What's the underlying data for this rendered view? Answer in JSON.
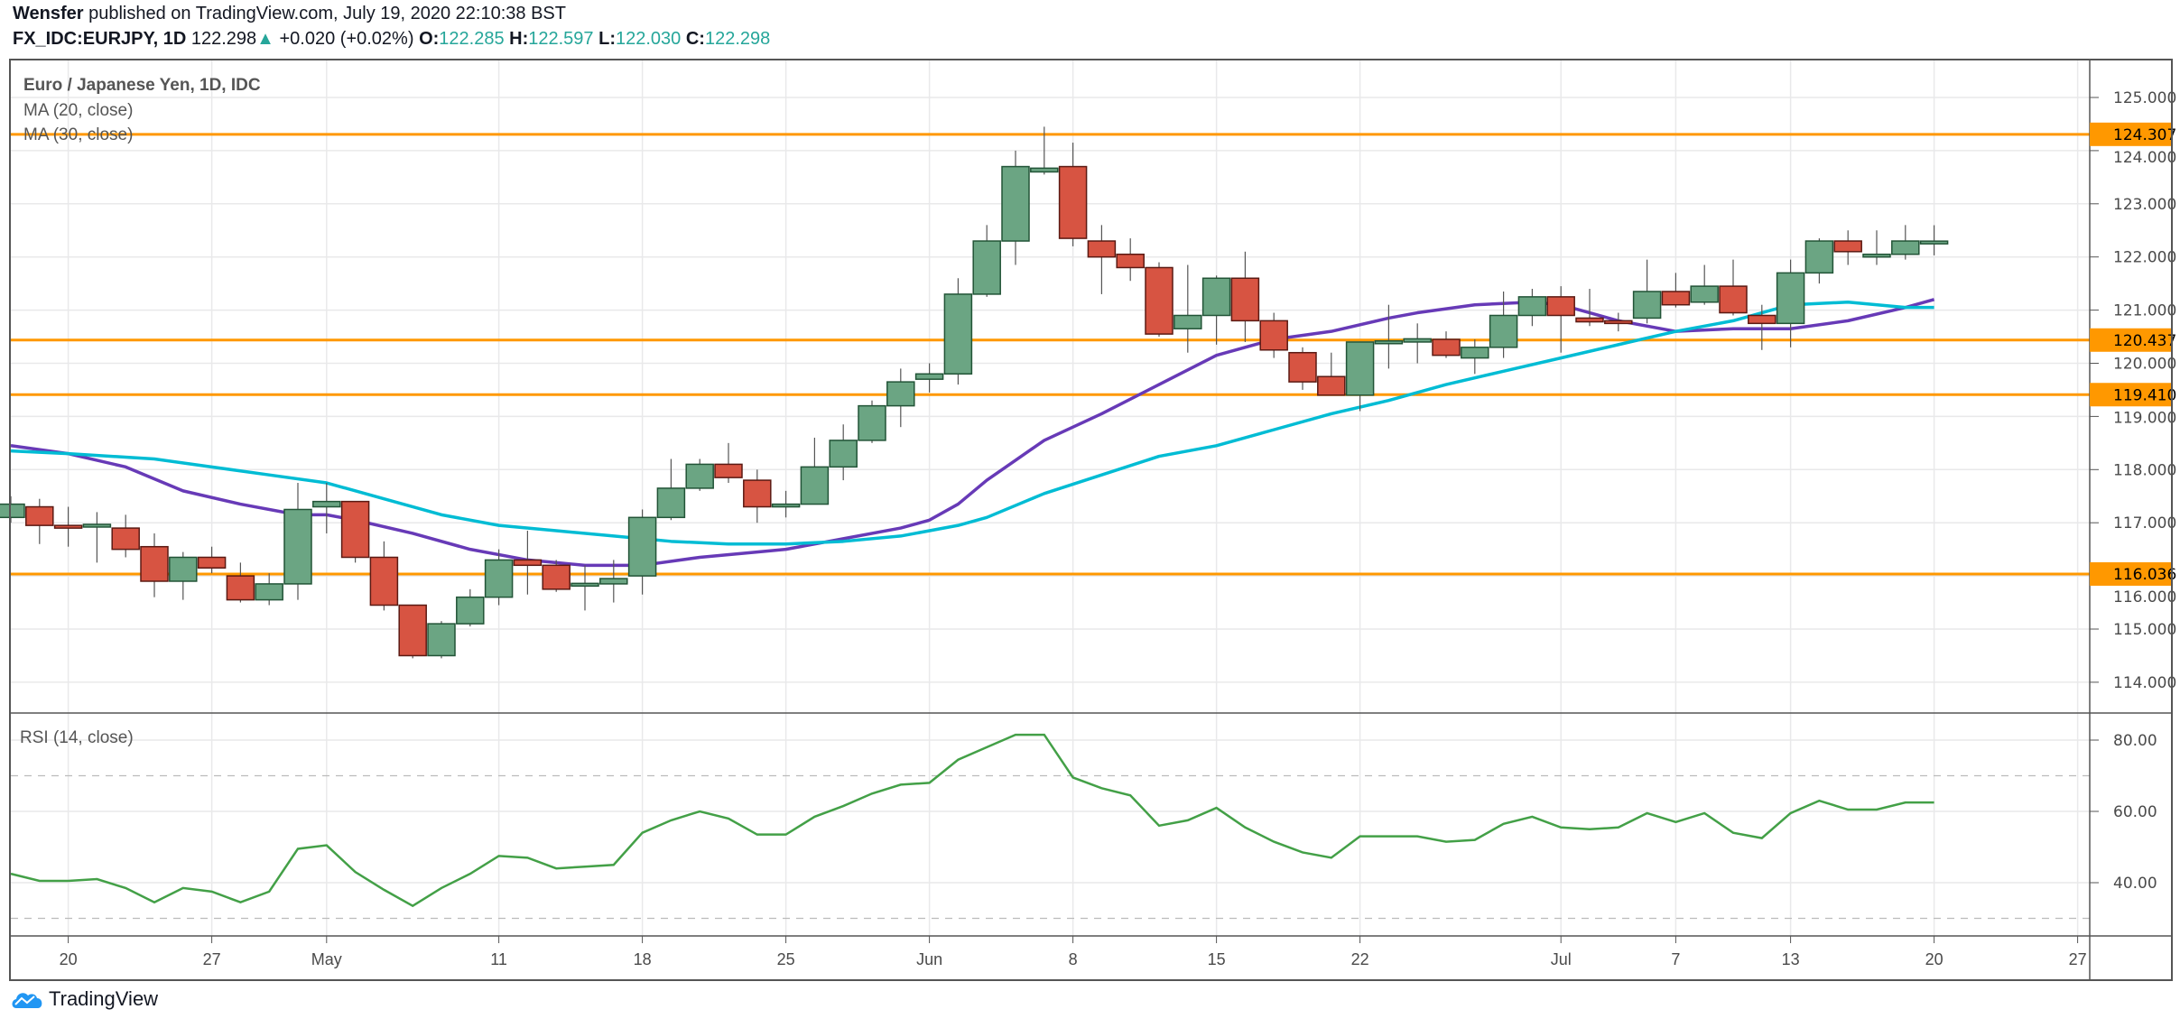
{
  "header": {
    "author": "Wensfer",
    "published": " published on TradingView.com, July 19, 2020 22:10:38 BST",
    "symbol": "FX_IDC:EURJPY, 1D",
    "last": "122.298",
    "change": "+0.020 (+0.02%)",
    "o_label": "O:",
    "o": "122.285",
    "h_label": "H:",
    "h": "122.597",
    "l_label": "L:",
    "l": "122.030",
    "c_label": "C:",
    "c": "122.298",
    "direction_icon": "triangle-up-icon"
  },
  "legend": {
    "title": "Euro / Japanese Yen, 1D, IDC",
    "ma20": "MA (20, close)",
    "ma30": "MA (30, close)",
    "rsi": "RSI (14, close)"
  },
  "footer": {
    "brand": "TradingView",
    "logo_icon": "tradingview-cloud-logo-icon"
  },
  "colors": {
    "up_fill": "#6ba583",
    "up_border": "#225437",
    "down_fill": "#d75442",
    "down_border": "#5b1a13",
    "ma20": "#673ab7",
    "ma30": "#00bcd4",
    "rsi": "#43a047",
    "level": "#ff9800",
    "change_up": "#26a69a"
  },
  "chart_data": [
    {
      "type": "candlestick",
      "ylim": [
        113.5,
        125.5
      ],
      "yticks": [
        "114.000",
        "115.000",
        "116.000",
        "117.000",
        "118.000",
        "119.000",
        "120.000",
        "121.000",
        "122.000",
        "123.000",
        "124.000",
        "125.000"
      ],
      "xticks": [
        {
          "date": "2020-04-20",
          "label": "20"
        },
        {
          "date": "2020-04-27",
          "label": "27"
        },
        {
          "date": "2020-05-01",
          "label": "May"
        },
        {
          "date": "2020-05-11",
          "label": "11"
        },
        {
          "date": "2020-05-18",
          "label": "18"
        },
        {
          "date": "2020-05-25",
          "label": "25"
        },
        {
          "date": "2020-06-01",
          "label": "Jun"
        },
        {
          "date": "2020-06-08",
          "label": "8"
        },
        {
          "date": "2020-06-15",
          "label": "15"
        },
        {
          "date": "2020-06-22",
          "label": "22"
        },
        {
          "date": "2020-07-01",
          "label": "Jul"
        },
        {
          "date": "2020-07-07",
          "label": "7"
        },
        {
          "date": "2020-07-13",
          "label": "13"
        },
        {
          "date": "2020-07-20",
          "label": "20"
        },
        {
          "date": "2020-07-27",
          "label": "27"
        }
      ],
      "grid": true,
      "horizontal_levels": [
        {
          "value": 124.307,
          "label": "124.307"
        },
        {
          "value": 120.437,
          "label": "120.437"
        },
        {
          "value": 119.41,
          "label": "119.410"
        },
        {
          "value": 116.036,
          "label": "116.036"
        }
      ],
      "ohlc_columns": [
        "date",
        "open",
        "high",
        "low",
        "close"
      ],
      "candles": [
        [
          "2020-04-16",
          117.1,
          117.5,
          117.0,
          117.35
        ],
        [
          "2020-04-17",
          117.3,
          117.45,
          116.6,
          116.95
        ],
        [
          "2020-04-20",
          116.95,
          117.3,
          116.55,
          116.93
        ],
        [
          "2020-04-21",
          116.93,
          117.2,
          116.25,
          116.97
        ],
        [
          "2020-04-22",
          116.9,
          117.15,
          116.35,
          116.5
        ],
        [
          "2020-04-23",
          116.55,
          116.8,
          115.6,
          115.9
        ],
        [
          "2020-04-24",
          115.9,
          116.45,
          115.55,
          116.35
        ],
        [
          "2020-04-27",
          116.35,
          116.55,
          116.05,
          116.15
        ],
        [
          "2020-04-28",
          116.0,
          116.25,
          115.5,
          115.55
        ],
        [
          "2020-04-29",
          115.55,
          116.05,
          115.45,
          115.85
        ],
        [
          "2020-04-30",
          115.85,
          117.75,
          115.55,
          117.25
        ],
        [
          "2020-05-01",
          117.3,
          117.75,
          116.8,
          117.4
        ],
        [
          "2020-05-04",
          117.4,
          117.4,
          116.25,
          116.35
        ],
        [
          "2020-05-05",
          116.35,
          116.65,
          115.35,
          115.45
        ],
        [
          "2020-05-06",
          115.45,
          115.45,
          114.45,
          114.5
        ],
        [
          "2020-05-07",
          114.5,
          115.15,
          114.45,
          115.1
        ],
        [
          "2020-05-08",
          115.1,
          115.75,
          115.05,
          115.6
        ],
        [
          "2020-05-11",
          115.6,
          116.5,
          115.45,
          116.3
        ],
        [
          "2020-05-12",
          116.3,
          116.85,
          115.65,
          116.2
        ],
        [
          "2020-05-13",
          116.2,
          116.3,
          115.7,
          115.75
        ],
        [
          "2020-05-14",
          115.85,
          116.2,
          115.35,
          115.86
        ],
        [
          "2020-05-15",
          115.85,
          116.3,
          115.5,
          115.95
        ],
        [
          "2020-05-18",
          116.0,
          117.25,
          115.65,
          117.1
        ],
        [
          "2020-05-19",
          117.1,
          118.2,
          117.05,
          117.65
        ],
        [
          "2020-05-20",
          117.65,
          118.2,
          117.6,
          118.1
        ],
        [
          "2020-05-21",
          118.1,
          118.5,
          117.75,
          117.85
        ],
        [
          "2020-05-22",
          117.8,
          118.0,
          117.0,
          117.3
        ],
        [
          "2020-05-25",
          117.3,
          117.6,
          117.1,
          117.35
        ],
        [
          "2020-05-26",
          117.35,
          118.6,
          117.35,
          118.05
        ],
        [
          "2020-05-27",
          118.05,
          118.85,
          117.8,
          118.55
        ],
        [
          "2020-05-28",
          118.55,
          119.3,
          118.5,
          119.2
        ],
        [
          "2020-05-29",
          119.2,
          119.9,
          118.8,
          119.65
        ],
        [
          "2020-06-01",
          119.7,
          120.0,
          119.45,
          119.8
        ],
        [
          "2020-06-02",
          119.8,
          121.6,
          119.6,
          121.3
        ],
        [
          "2020-06-03",
          121.3,
          122.6,
          121.25,
          122.3
        ],
        [
          "2020-06-04",
          122.3,
          124.0,
          121.85,
          123.7
        ],
        [
          "2020-06-05",
          123.6,
          124.45,
          123.55,
          123.67
        ],
        [
          "2020-06-08",
          123.7,
          124.15,
          122.2,
          122.35
        ],
        [
          "2020-06-09",
          122.3,
          122.6,
          121.3,
          122.0
        ],
        [
          "2020-06-10",
          122.05,
          122.35,
          121.55,
          121.8
        ],
        [
          "2020-06-11",
          121.8,
          121.9,
          120.5,
          120.55
        ],
        [
          "2020-06-12",
          120.65,
          121.85,
          120.2,
          120.9
        ],
        [
          "2020-06-15",
          120.9,
          121.65,
          120.35,
          121.6
        ],
        [
          "2020-06-16",
          121.6,
          122.1,
          120.4,
          120.8
        ],
        [
          "2020-06-17",
          120.8,
          120.95,
          120.1,
          120.25
        ],
        [
          "2020-06-18",
          120.2,
          120.3,
          119.5,
          119.65
        ],
        [
          "2020-06-19",
          119.75,
          120.2,
          119.4,
          119.4
        ],
        [
          "2020-06-22",
          119.4,
          120.4,
          119.1,
          120.4
        ],
        [
          "2020-06-23",
          120.4,
          121.1,
          119.9,
          120.42
        ],
        [
          "2020-06-24",
          120.4,
          120.75,
          120.0,
          120.46
        ],
        [
          "2020-06-25",
          120.45,
          120.6,
          120.1,
          120.15
        ],
        [
          "2020-06-26",
          120.1,
          120.45,
          119.8,
          120.3
        ],
        [
          "2020-06-29",
          120.3,
          121.35,
          120.1,
          120.9
        ],
        [
          "2020-06-30",
          120.9,
          121.4,
          120.7,
          121.25
        ],
        [
          "2020-07-01",
          121.25,
          121.45,
          120.2,
          120.9
        ],
        [
          "2020-07-02",
          120.85,
          121.4,
          120.7,
          120.78
        ],
        [
          "2020-07-03",
          120.8,
          120.95,
          120.6,
          120.78
        ],
        [
          "2020-07-06",
          120.85,
          121.95,
          120.75,
          121.35
        ],
        [
          "2020-07-07",
          121.35,
          121.7,
          121.05,
          121.1
        ],
        [
          "2020-07-08",
          121.15,
          121.85,
          121.1,
          121.45
        ],
        [
          "2020-07-09",
          121.45,
          121.95,
          120.9,
          120.95
        ],
        [
          "2020-07-10",
          120.9,
          121.1,
          120.25,
          120.75
        ],
        [
          "2020-07-13",
          120.75,
          121.95,
          120.3,
          121.7
        ],
        [
          "2020-07-14",
          121.7,
          122.35,
          121.5,
          122.3
        ],
        [
          "2020-07-15",
          122.3,
          122.5,
          121.85,
          122.1
        ],
        [
          "2020-07-16",
          122.0,
          122.5,
          121.85,
          122.05
        ],
        [
          "2020-07-17",
          122.05,
          122.6,
          121.95,
          122.3
        ],
        [
          "2020-07-20",
          122.285,
          122.597,
          122.03,
          122.298
        ]
      ],
      "series": [
        {
          "name": "MA (20, close)",
          "points": [
            [
              "2020-04-16",
              118.45
            ],
            [
              "2020-04-20",
              118.3
            ],
            [
              "2020-04-22",
              118.05
            ],
            [
              "2020-04-24",
              117.6
            ],
            [
              "2020-04-28",
              117.35
            ],
            [
              "2020-04-30",
              117.15
            ],
            [
              "2020-05-01",
              117.15
            ],
            [
              "2020-05-04",
              117.05
            ],
            [
              "2020-05-06",
              116.8
            ],
            [
              "2020-05-08",
              116.5
            ],
            [
              "2020-05-12",
              116.3
            ],
            [
              "2020-05-14",
              116.2
            ],
            [
              "2020-05-18",
              116.2
            ],
            [
              "2020-05-20",
              116.35
            ],
            [
              "2020-05-22",
              116.45
            ],
            [
              "2020-05-25",
              116.5
            ],
            [
              "2020-05-27",
              116.7
            ],
            [
              "2020-05-29",
              116.9
            ],
            [
              "2020-06-01",
              117.05
            ],
            [
              "2020-06-02",
              117.35
            ],
            [
              "2020-06-03",
              117.8
            ],
            [
              "2020-06-05",
              118.55
            ],
            [
              "2020-06-09",
              119.05
            ],
            [
              "2020-06-11",
              119.6
            ],
            [
              "2020-06-15",
              120.15
            ],
            [
              "2020-06-17",
              120.45
            ],
            [
              "2020-06-19",
              120.6
            ],
            [
              "2020-06-23",
              120.85
            ],
            [
              "2020-06-24",
              120.95
            ],
            [
              "2020-06-26",
              121.1
            ],
            [
              "2020-06-30",
              121.15
            ],
            [
              "2020-07-01",
              121.1
            ],
            [
              "2020-07-03",
              120.8
            ],
            [
              "2020-07-07",
              120.6
            ],
            [
              "2020-07-09",
              120.65
            ],
            [
              "2020-07-13",
              120.65
            ],
            [
              "2020-07-15",
              120.8
            ],
            [
              "2020-07-17",
              121.05
            ],
            [
              "2020-07-20",
              121.2
            ]
          ]
        },
        {
          "name": "MA (30, close)",
          "points": [
            [
              "2020-04-16",
              118.35
            ],
            [
              "2020-04-20",
              118.3
            ],
            [
              "2020-04-23",
              118.2
            ],
            [
              "2020-04-27",
              118.05
            ],
            [
              "2020-04-29",
              117.9
            ],
            [
              "2020-05-01",
              117.75
            ],
            [
              "2020-05-05",
              117.45
            ],
            [
              "2020-05-07",
              117.15
            ],
            [
              "2020-05-11",
              116.95
            ],
            [
              "2020-05-13",
              116.85
            ],
            [
              "2020-05-15",
              116.75
            ],
            [
              "2020-05-19",
              116.65
            ],
            [
              "2020-05-21",
              116.6
            ],
            [
              "2020-05-25",
              116.6
            ],
            [
              "2020-05-27",
              116.65
            ],
            [
              "2020-05-29",
              116.75
            ],
            [
              "2020-06-02",
              116.95
            ],
            [
              "2020-06-03",
              117.1
            ],
            [
              "2020-06-05",
              117.55
            ],
            [
              "2020-06-09",
              117.9
            ],
            [
              "2020-06-11",
              118.25
            ],
            [
              "2020-06-15",
              118.45
            ],
            [
              "2020-06-17",
              118.75
            ],
            [
              "2020-06-19",
              119.05
            ],
            [
              "2020-06-23",
              119.3
            ],
            [
              "2020-06-25",
              119.6
            ],
            [
              "2020-06-29",
              119.85
            ],
            [
              "2020-07-01",
              120.1
            ],
            [
              "2020-07-03",
              120.35
            ],
            [
              "2020-07-07",
              120.6
            ],
            [
              "2020-07-09",
              120.8
            ],
            [
              "2020-07-13",
              121.1
            ],
            [
              "2020-07-15",
              121.15
            ],
            [
              "2020-07-17",
              121.05
            ],
            [
              "2020-07-20",
              121.05
            ]
          ]
        }
      ]
    },
    {
      "type": "line",
      "name": "RSI (14, close)",
      "ylim": [
        25,
        85
      ],
      "yticks": [
        "40.00",
        "60.00",
        "80.00"
      ],
      "bands": [
        30,
        70
      ],
      "values": [
        42.5,
        40.5,
        40.5,
        41,
        38.5,
        34.5,
        38.5,
        37.5,
        34.5,
        37.5,
        49.5,
        50.5,
        43,
        38,
        33.5,
        38.5,
        42.5,
        47.5,
        47,
        44,
        44.5,
        45,
        54,
        57.5,
        60,
        58,
        53.5,
        53.5,
        58.5,
        61.5,
        65,
        67.5,
        68,
        74.5,
        78,
        81.5,
        81.5,
        69.5,
        66.5,
        64.5,
        56,
        57.5,
        61,
        55.5,
        51.5,
        48.5,
        47,
        53,
        53,
        53,
        51.5,
        52,
        56.5,
        58.5,
        55.5,
        55,
        55.5,
        59.5,
        57,
        59.5,
        54,
        52.5,
        59.5,
        63,
        60.5,
        60.5,
        62.5,
        62.5
      ]
    }
  ]
}
